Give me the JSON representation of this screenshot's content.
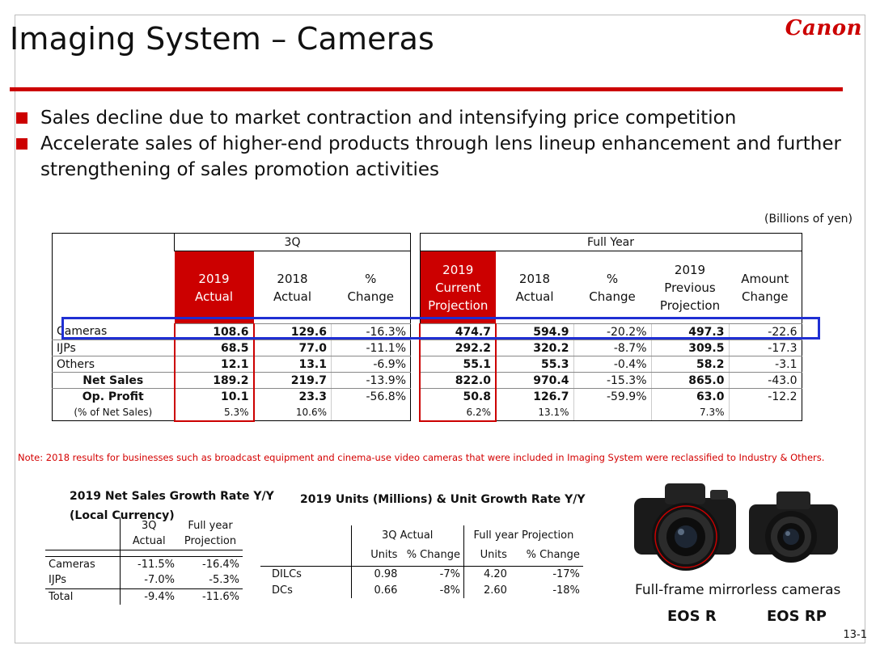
{
  "title": "Imaging System – Cameras",
  "logo": "Canon",
  "bullets": [
    "Sales decline due to market contraction and intensifying price competition",
    "Accelerate sales of higher-end products through lens lineup enhancement and further strengthening of sales promotion activities"
  ],
  "unit_note": "(Billions of yen)",
  "main_table": {
    "group_3q": "3Q",
    "group_fy": "Full Year",
    "headers": {
      "q_2019": "2019\nActual",
      "q_2018": "2018\nActual",
      "q_change": "%\nChange",
      "fy_2019_cur": "2019\nCurrent\nProjection",
      "fy_2018": "2018\nActual",
      "fy_change": "%\nChange",
      "fy_2019_prev": "2019\nPrevious\nProjection",
      "fy_amount": "Amount\nChange"
    },
    "rows": [
      {
        "label": "Cameras",
        "q19": "108.6",
        "q18": "129.6",
        "qch": "-16.3%",
        "f19": "474.7",
        "f18": "594.9",
        "fch": "-20.2%",
        "fprev": "497.3",
        "famt": "-22.6"
      },
      {
        "label": "IJPs",
        "q19": "68.5",
        "q18": "77.0",
        "qch": "-11.1%",
        "f19": "292.2",
        "f18": "320.2",
        "fch": "-8.7%",
        "fprev": "309.5",
        "famt": "-17.3"
      },
      {
        "label": "Others",
        "q19": "12.1",
        "q18": "13.1",
        "qch": "-6.9%",
        "f19": "55.1",
        "f18": "55.3",
        "fch": "-0.4%",
        "fprev": "58.2",
        "famt": "-3.1"
      },
      {
        "label": "Net Sales",
        "q19": "189.2",
        "q18": "219.7",
        "qch": "-13.9%",
        "f19": "822.0",
        "f18": "970.4",
        "fch": "-15.3%",
        "fprev": "865.0",
        "famt": "-43.0"
      },
      {
        "label": "Op. Profit",
        "q19": "10.1",
        "q18": "23.3",
        "qch": "-56.8%",
        "f19": "50.8",
        "f18": "126.7",
        "fch": "-59.9%",
        "fprev": "63.0",
        "famt": "-12.2"
      },
      {
        "label": "(% of Net Sales)",
        "q19": "5.3%",
        "q18": "10.6%",
        "qch": "",
        "f19": "6.2%",
        "f18": "13.1%",
        "fch": "",
        "fprev": "7.3%",
        "famt": ""
      }
    ]
  },
  "note": "Note: 2018 results for businesses such as broadcast equipment and cinema-use video cameras that were included in Imaging System were reclassified to Industry & Others.",
  "growth_table": {
    "title_line1": "2019 Net Sales Growth Rate Y/Y",
    "title_line2": "(Local Currency)",
    "h_3q_1": "3Q",
    "h_3q_2": "Actual",
    "h_fy_1": "Full year",
    "h_fy_2": "Projection",
    "rows": [
      {
        "label": "Cameras",
        "q": "-11.5%",
        "fy": "-16.4%"
      },
      {
        "label": "IJPs",
        "q": "-7.0%",
        "fy": "-5.3%"
      },
      {
        "label": "Total",
        "q": "-9.4%",
        "fy": "-11.6%"
      }
    ]
  },
  "units_table": {
    "title": "2019 Units (Millions) & Unit Growth Rate Y/Y",
    "h_3q": "3Q Actual",
    "h_fy": "Full year Projection",
    "h_units": "Units",
    "h_change": "% Change",
    "rows": [
      {
        "label": "DILCs",
        "q_units": "0.98",
        "q_change": "-7%",
        "fy_units": "4.20",
        "fy_change": "-17%"
      },
      {
        "label": "DCs",
        "q_units": "0.66",
        "q_change": "-8%",
        "fy_units": "2.60",
        "fy_change": "-18%"
      }
    ]
  },
  "cameras": {
    "caption": "Full-frame mirrorless cameras",
    "left_name": "EOS R",
    "right_name": "EOS RP"
  },
  "page_number": "13-1",
  "colors": {
    "accent": "#cc0000",
    "highlight": "#1f2fd3"
  }
}
